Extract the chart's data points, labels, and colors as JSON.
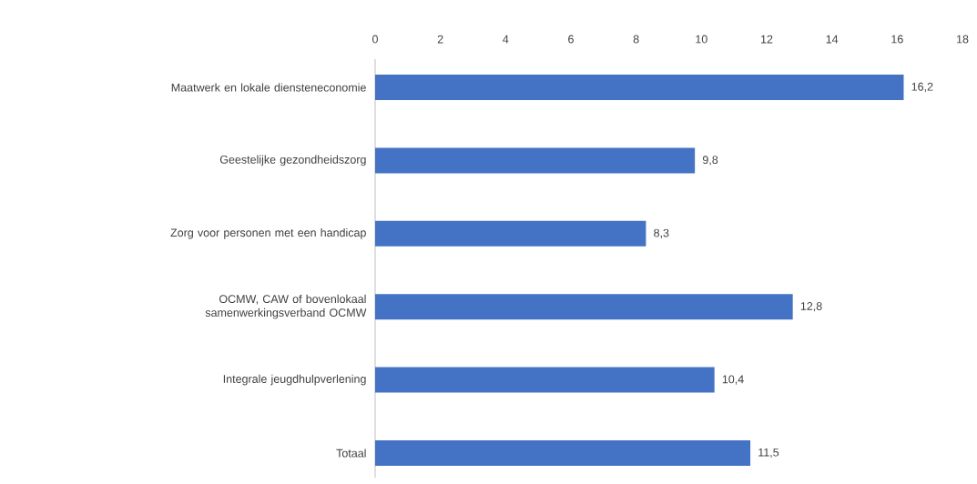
{
  "chart_data": {
    "type": "bar",
    "orientation": "horizontal",
    "categories": [
      "Maatwerk en lokale diensteneconomie",
      "Geestelijke gezondheidszorg",
      "Zorg voor personen met een handicap",
      "OCMW, CAW of bovenlokaal samenwerkingsverband OCMW",
      "Integrale jeugdhulpverlening",
      "Totaal"
    ],
    "values": [
      16.2,
      9.8,
      8.3,
      12.8,
      10.4,
      11.5
    ],
    "value_labels": [
      "16,2",
      "9,8",
      "8,3",
      "12,8",
      "10,4",
      "11,5"
    ],
    "color": "#4472c4",
    "xlim": [
      0,
      18
    ],
    "xticks": [
      0,
      2,
      4,
      6,
      8,
      10,
      12,
      14,
      16,
      18
    ]
  }
}
